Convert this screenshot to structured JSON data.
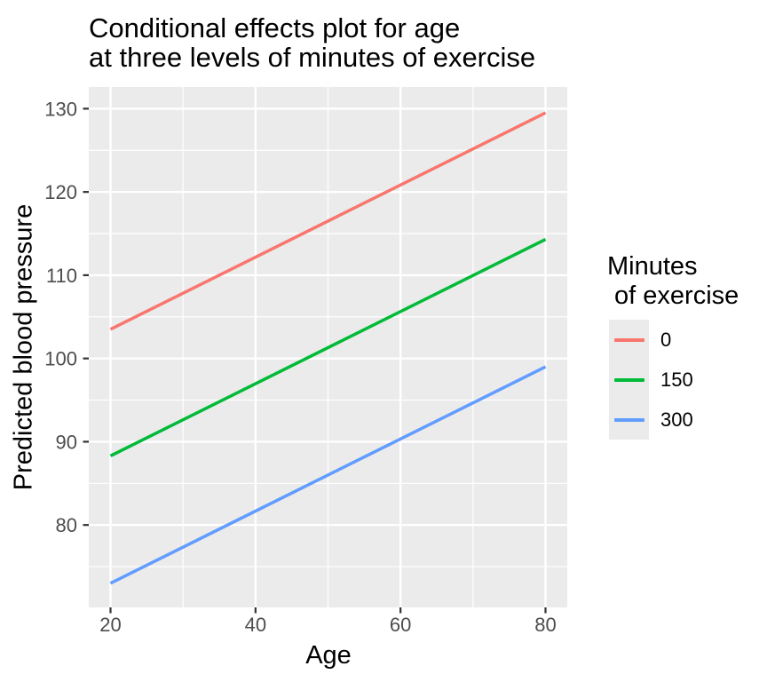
{
  "chart_data": {
    "type": "line",
    "title_lines": [
      "Conditional effects plot for age",
      "at three levels of minutes of exercise"
    ],
    "xlabel": "Age",
    "ylabel": "Predicted blood pressure",
    "x": [
      20,
      80
    ],
    "series": [
      {
        "name": "0",
        "color": "#F8766D",
        "values": [
          103.5,
          129.5
        ]
      },
      {
        "name": "150",
        "color": "#00BA38",
        "values": [
          88.3,
          114.3
        ]
      },
      {
        "name": "300",
        "color": "#619CFF",
        "values": [
          73.0,
          99.0
        ]
      }
    ],
    "x_ticks": [
      20,
      40,
      60,
      80
    ],
    "y_ticks": [
      80,
      90,
      100,
      110,
      120,
      130
    ],
    "x_minor_ticks": [
      30,
      50,
      70
    ],
    "y_minor_ticks": [
      75,
      85,
      95,
      105,
      115,
      125
    ],
    "xlim": [
      17,
      83
    ],
    "ylim": [
      70.1,
      132.6
    ],
    "grid": true,
    "legend_position": "right",
    "legend": {
      "title_lines": [
        "Minutes",
        " of exercise"
      ],
      "entries": [
        "0",
        "150",
        "300"
      ]
    },
    "colors": {
      "panel_background": "#EBEBEB",
      "gridline": "#FFFFFF",
      "tick_mark": "#333333",
      "tick_label": "#4D4D4D",
      "text": "#000000",
      "series_red": "#F8766D",
      "series_green": "#00BA38",
      "series_blue": "#619CFF"
    }
  }
}
